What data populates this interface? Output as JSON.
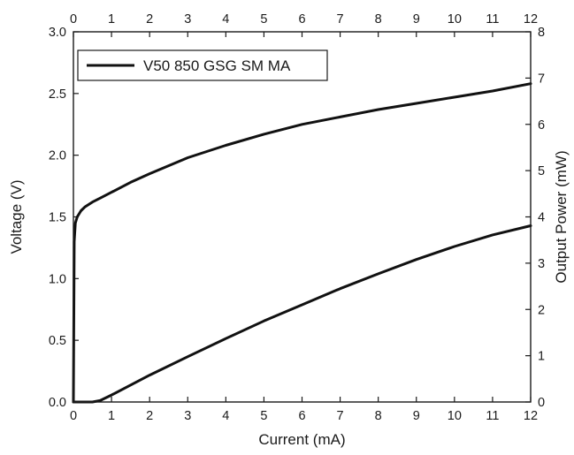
{
  "chart_data": {
    "type": "line",
    "title": "",
    "xlabel": "Current (mA)",
    "ylabel": "Voltage (V)",
    "y2label": "Output Power (mW)",
    "xlim": [
      0,
      12
    ],
    "ylim": [
      0,
      3.0
    ],
    "y2lim": [
      0,
      8
    ],
    "x_ticks": [
      0,
      1,
      2,
      3,
      4,
      5,
      6,
      7,
      8,
      9,
      10,
      11,
      12
    ],
    "x_tick_labels": [
      "0",
      "1",
      "2",
      "3",
      "4",
      "5",
      "6",
      "7",
      "8",
      "9",
      "10",
      "11",
      "12"
    ],
    "y_ticks": [
      0,
      0.5,
      1.0,
      1.5,
      2.0,
      2.5,
      3.0
    ],
    "y_tick_labels": [
      "0.0",
      "0.5",
      "1.0",
      "1.5",
      "2.0",
      "2.5",
      "3.0"
    ],
    "y2_ticks": [
      0,
      1,
      2,
      3,
      4,
      5,
      6,
      7,
      8
    ],
    "y2_tick_labels": [
      "0",
      "1",
      "2",
      "3",
      "4",
      "5",
      "6",
      "7",
      "8"
    ],
    "grid": false,
    "legend": {
      "position": "top-left",
      "entries": [
        "V50 850 GSG SM MA"
      ]
    },
    "series": [
      {
        "name": "V50 850 GSG SM MA",
        "axis": "left",
        "color": "#111111",
        "x": [
          0,
          0.02,
          0.05,
          0.1,
          0.2,
          0.3,
          0.5,
          0.75,
          1,
          1.5,
          2,
          3,
          4,
          5,
          6,
          7,
          8,
          9,
          10,
          11,
          12
        ],
        "y": [
          0,
          1.3,
          1.45,
          1.5,
          1.55,
          1.58,
          1.62,
          1.66,
          1.7,
          1.78,
          1.85,
          1.98,
          2.08,
          2.17,
          2.25,
          2.31,
          2.37,
          2.42,
          2.47,
          2.52,
          2.58
        ]
      },
      {
        "axis": "right",
        "color": "#111111",
        "x": [
          0,
          0.3,
          0.5,
          0.7,
          1,
          2,
          3,
          4,
          5,
          6,
          7,
          8,
          9,
          10,
          11,
          12
        ],
        "y": [
          0,
          0,
          0,
          0.03,
          0.15,
          0.58,
          0.98,
          1.37,
          1.75,
          2.1,
          2.45,
          2.77,
          3.08,
          3.36,
          3.61,
          3.81
        ]
      }
    ]
  }
}
